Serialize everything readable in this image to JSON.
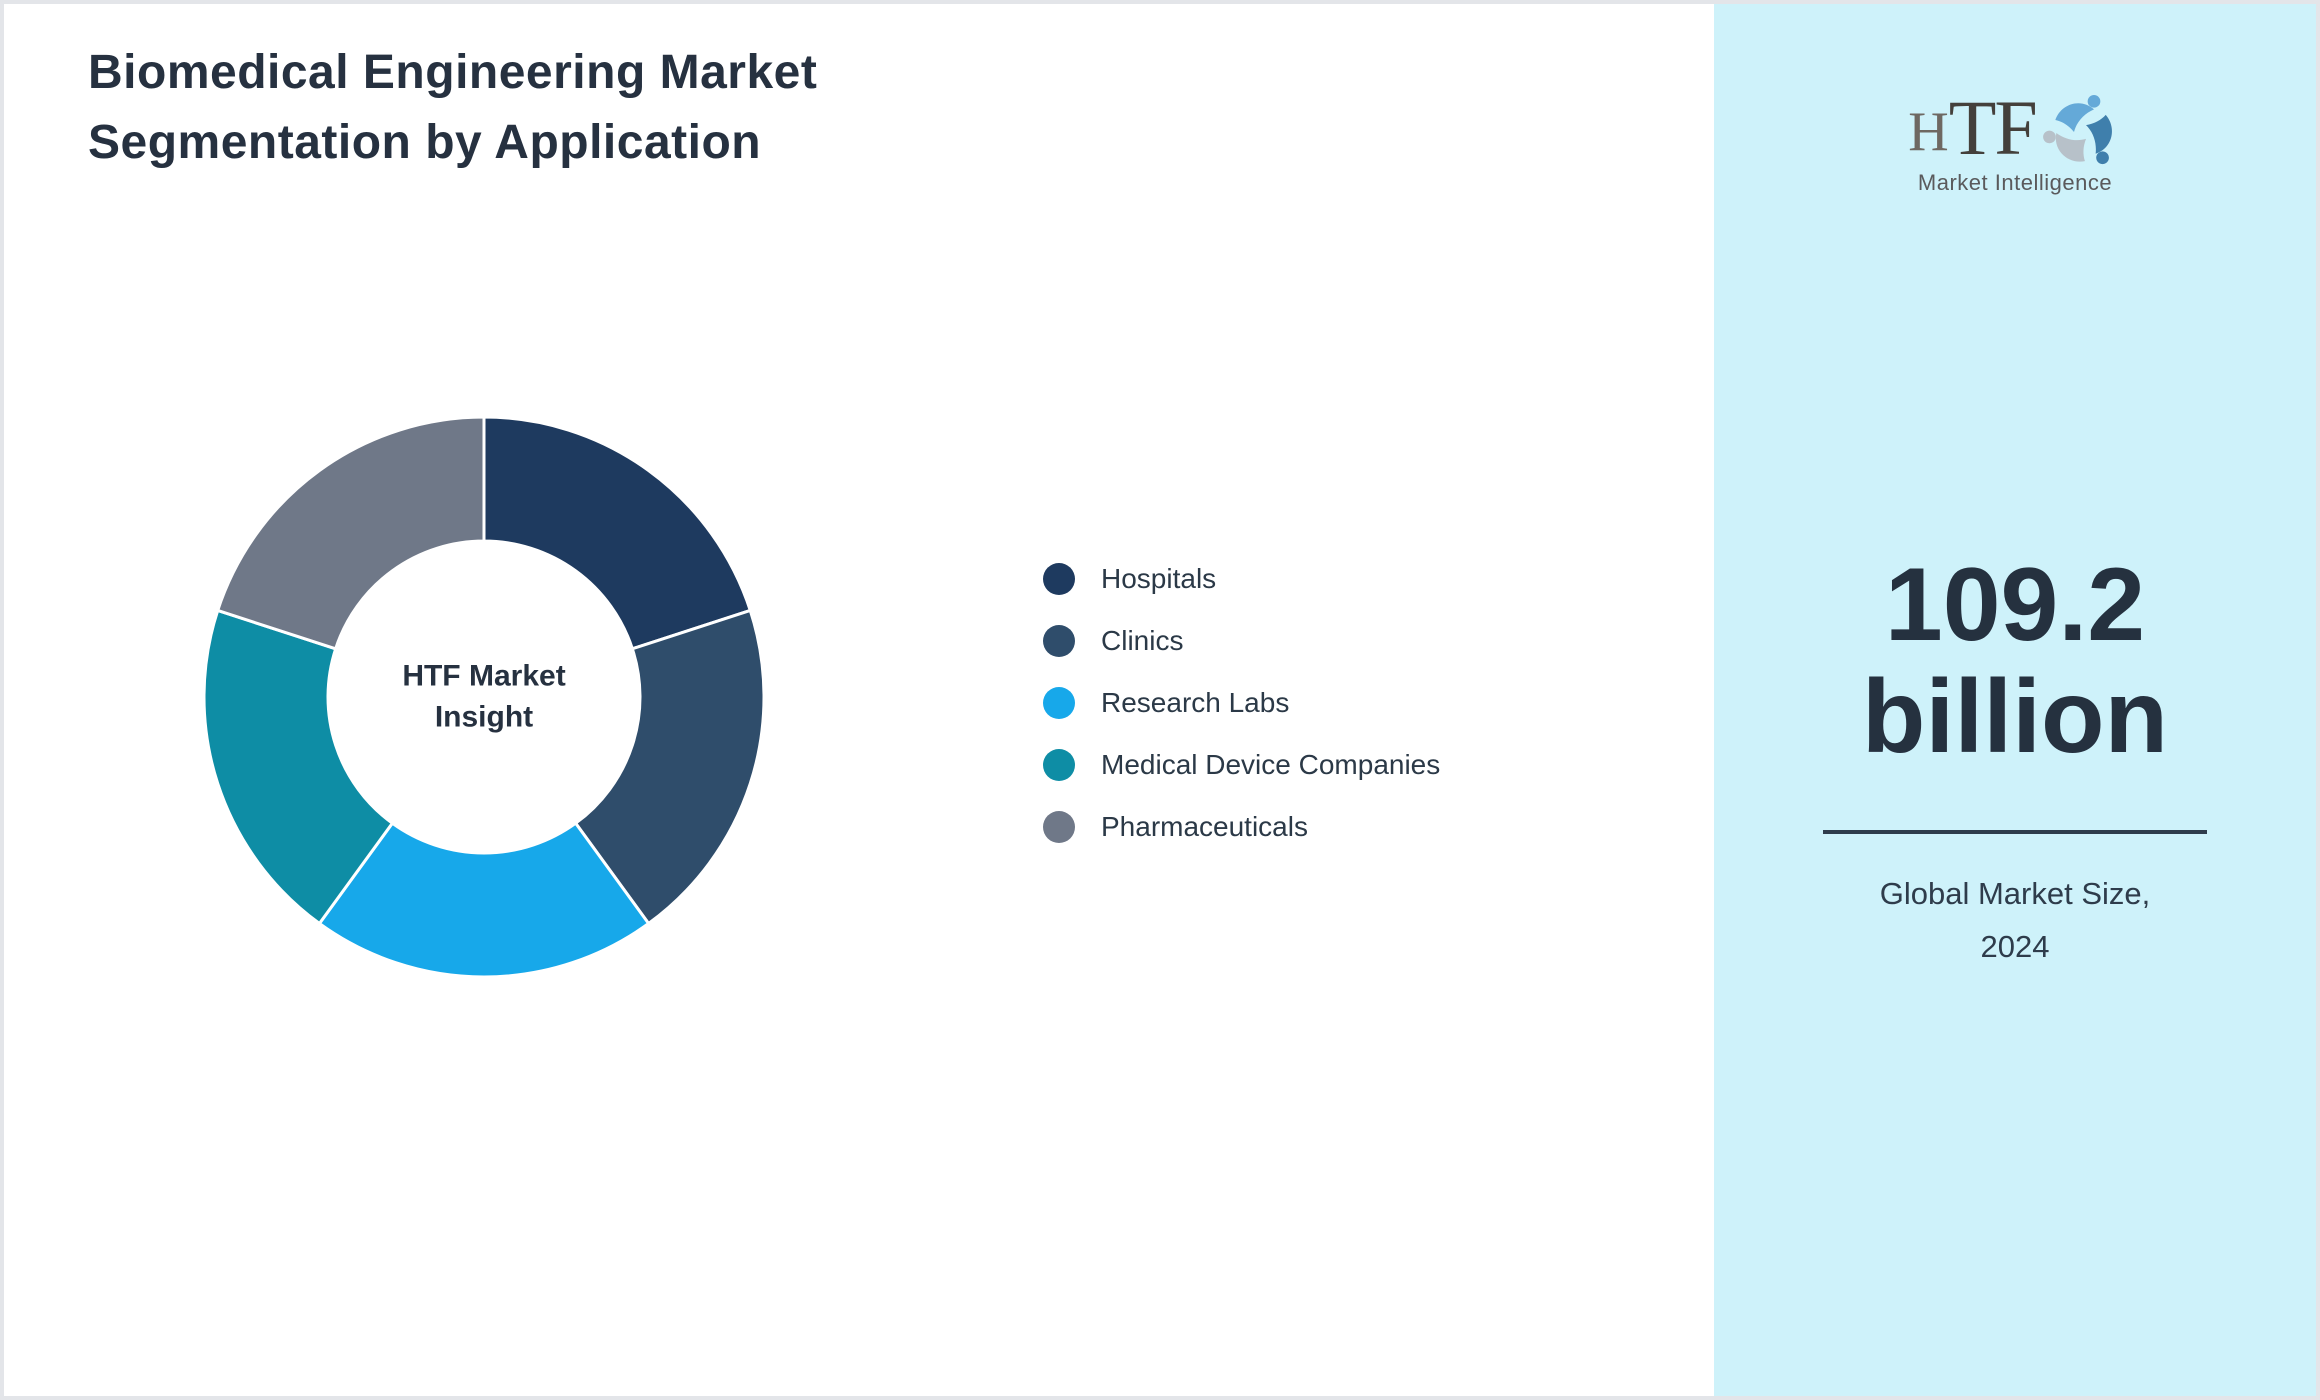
{
  "header": {
    "title_line1": "Biomedical Engineering Market",
    "title_line2": "Segmentation by Application"
  },
  "chart_data": {
    "type": "pie",
    "variant": "donut",
    "title": "Biomedical Engineering Market Segmentation by Application",
    "center_label_line1": "HTF Market",
    "center_label_line2": "Insight",
    "legend_position": "right",
    "start_angle_deg": 0,
    "hole_ratio": 0.56,
    "segment_gap_color": "#FFFFFF",
    "note": "segment values are not labeled in the image; all five slices appear equal (~20% each)",
    "segments": [
      {
        "label": "Hospitals",
        "value": 20,
        "color": "#1E3A5F"
      },
      {
        "label": "Clinics",
        "value": 20,
        "color": "#2F4D6B"
      },
      {
        "label": "Research Labs",
        "value": 20,
        "color": "#17A8EA"
      },
      {
        "label": "Medical Device Companies",
        "value": 20,
        "color": "#0E8DA5"
      },
      {
        "label": "Pharmaceuticals",
        "value": 20,
        "color": "#6F7888"
      }
    ]
  },
  "sidebar": {
    "background_color": "#CEF2FA",
    "logo": {
      "text_h": "H",
      "text_tf": "TF",
      "subtext": "Market Intelligence",
      "icon": "three-figures-swirl"
    },
    "value_line1": "109.2",
    "value_line2": "billion",
    "caption_line1": "Global Market Size,",
    "caption_line2": "2024"
  }
}
